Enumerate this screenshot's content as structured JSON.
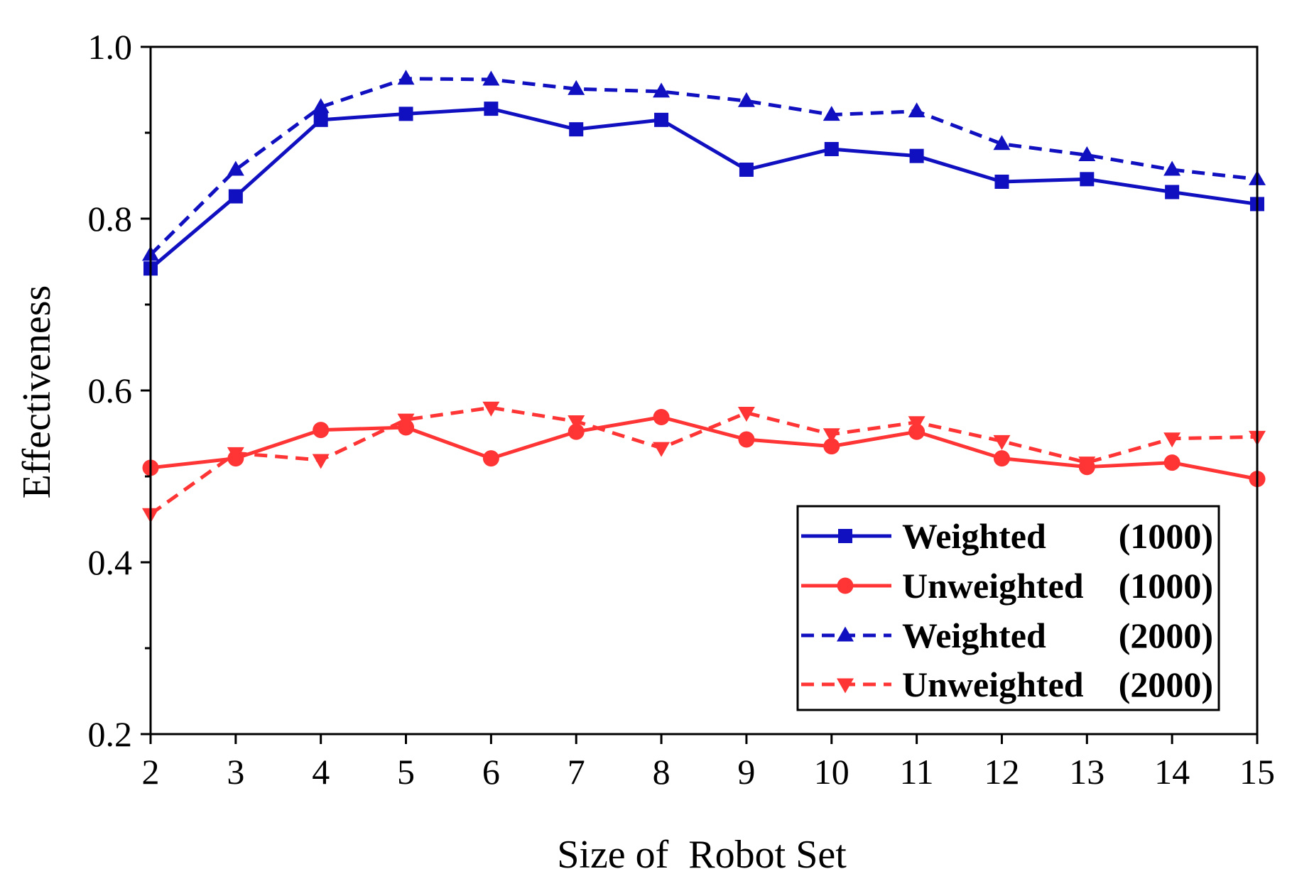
{
  "chart_data": {
    "type": "line",
    "title": "",
    "xlabel": "Size of  Robot Set",
    "ylabel": "Effectiveness",
    "x": [
      2,
      3,
      4,
      5,
      6,
      7,
      8,
      9,
      10,
      11,
      12,
      13,
      14,
      15
    ],
    "xticks": [
      "2",
      "3",
      "4",
      "5",
      "6",
      "7",
      "8",
      "9",
      "10",
      "11",
      "12",
      "13",
      "14",
      "15"
    ],
    "xlim": [
      2,
      15
    ],
    "ylim": [
      0.2,
      1.0
    ],
    "yticks": [
      "0.2",
      "0.4",
      "0.6",
      "0.8",
      "1.0"
    ],
    "grid": false,
    "legend_position": "bottom-right",
    "series": [
      {
        "name": "Weighted",
        "param": "(1000)",
        "color": "#1010c0",
        "marker": "square",
        "dash": "solid",
        "values": [
          0.742,
          0.826,
          0.915,
          0.922,
          0.928,
          0.904,
          0.915,
          0.857,
          0.881,
          0.873,
          0.843,
          0.846,
          0.831,
          0.817
        ]
      },
      {
        "name": "Unweighted",
        "param": "(1000)",
        "color": "#ff3535",
        "marker": "circle",
        "dash": "solid",
        "values": [
          0.51,
          0.521,
          0.554,
          0.557,
          0.521,
          0.552,
          0.569,
          0.543,
          0.535,
          0.552,
          0.521,
          0.511,
          0.516,
          0.497
        ]
      },
      {
        "name": "Weighted",
        "param": "(2000)",
        "color": "#1010c0",
        "marker": "triangle-up",
        "dash": "dashed",
        "values": [
          0.758,
          0.857,
          0.93,
          0.963,
          0.962,
          0.951,
          0.948,
          0.937,
          0.921,
          0.925,
          0.887,
          0.874,
          0.857,
          0.846
        ]
      },
      {
        "name": "Unweighted",
        "param": "(2000)",
        "color": "#ff3535",
        "marker": "triangle-down",
        "dash": "dashed",
        "values": [
          0.456,
          0.527,
          0.519,
          0.566,
          0.58,
          0.564,
          0.533,
          0.574,
          0.549,
          0.563,
          0.541,
          0.516,
          0.544,
          0.546
        ]
      }
    ]
  }
}
